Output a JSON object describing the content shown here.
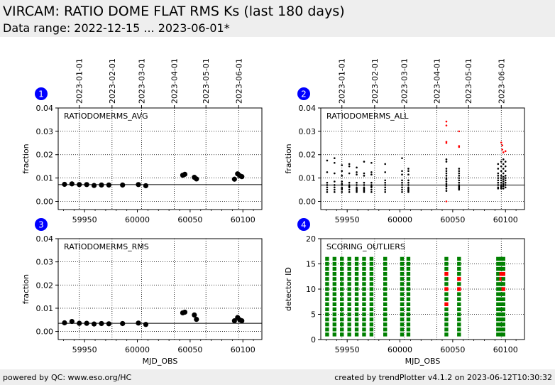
{
  "header": {
    "title": "VIRCAM: RATIO DOME FLAT RMS Ks (last 180 days)",
    "subtitle": "Data range: 2022-12-15 ... 2023-06-01*"
  },
  "footer": {
    "left": "powered by QC: www.eso.org/HC",
    "right": "created by trendPlotter v4.1.2 on 2023-06-12T10:30:32"
  },
  "colors": {
    "badge": "#0000ff",
    "outlier": "#ff0000",
    "good": "#008000",
    "points": "#000000",
    "header_bg": "#eeeeee"
  },
  "chart_data": [
    {
      "id": "1",
      "type": "scatter",
      "title": "RATIODOMERMS_AVG",
      "xlabel": "",
      "ylabel": "fraction",
      "xlim": [
        59925,
        60118
      ],
      "ylim": [
        -0.0035,
        0.04
      ],
      "xticks": [
        59950,
        60000,
        60050,
        60100
      ],
      "yticks": [
        0.0,
        0.01,
        0.02,
        0.03,
        0.04
      ],
      "ytick_labels": [
        "0.00",
        "0.01",
        "0.02",
        "0.03",
        "0.04"
      ],
      "date_ticks": [
        {
          "mjd": 59945,
          "label": "2023-01-01"
        },
        {
          "mjd": 59976,
          "label": "2023-02-01"
        },
        {
          "mjd": 60004,
          "label": "2023-03-01"
        },
        {
          "mjd": 60035,
          "label": "2023-04-01"
        },
        {
          "mjd": 60065,
          "label": "2023-05-01"
        },
        {
          "mjd": 60096,
          "label": "2023-06-01"
        }
      ],
      "reference_line": 0.0072,
      "marker": "large",
      "series": [
        {
          "color": "#000000",
          "points": [
            [
              59931,
              0.0073
            ],
            [
              59938,
              0.0075
            ],
            [
              59945,
              0.0072
            ],
            [
              59952,
              0.0072
            ],
            [
              59959,
              0.0068
            ],
            [
              59966,
              0.007
            ],
            [
              59973,
              0.007
            ],
            [
              59986,
              0.007
            ],
            [
              60001,
              0.0072
            ],
            [
              60008,
              0.0067
            ],
            [
              60043,
              0.0112
            ],
            [
              60045,
              0.0116
            ],
            [
              60054,
              0.0103
            ],
            [
              60056,
              0.0096
            ],
            [
              60092,
              0.0095
            ],
            [
              60095,
              0.0118
            ],
            [
              60097,
              0.011
            ],
            [
              60099,
              0.0106
            ]
          ]
        }
      ]
    },
    {
      "id": "2",
      "type": "scatter",
      "title": "RATIODOMERMS_ALL",
      "xlabel": "",
      "ylabel": "fraction",
      "xlim": [
        59925,
        60118
      ],
      "ylim": [
        -0.0035,
        0.04
      ],
      "xticks": [
        59950,
        60000,
        60050,
        60100
      ],
      "yticks": [
        0.0,
        0.01,
        0.02,
        0.03,
        0.04
      ],
      "ytick_labels": [
        "0.00",
        "0.01",
        "0.02",
        "0.03",
        "0.04"
      ],
      "date_ticks": [
        {
          "mjd": 59945,
          "label": "2023-01-01"
        },
        {
          "mjd": 59976,
          "label": "2023-02-01"
        },
        {
          "mjd": 60004,
          "label": "2023-03-01"
        },
        {
          "mjd": 60035,
          "label": "2023-04-01"
        },
        {
          "mjd": 60065,
          "label": "2023-05-01"
        },
        {
          "mjd": 60096,
          "label": "2023-06-01"
        }
      ],
      "reference_line": 0.007,
      "marker": "small",
      "series": [
        {
          "color": "#000000",
          "points": [
            [
              59931,
              0.004
            ],
            [
              59931,
              0.005
            ],
            [
              59931,
              0.006
            ],
            [
              59931,
              0.007
            ],
            [
              59931,
              0.008
            ],
            [
              59931,
              0.0125
            ],
            [
              59931,
              0.0175
            ],
            [
              59938,
              0.004
            ],
            [
              59938,
              0.005
            ],
            [
              59938,
              0.006
            ],
            [
              59938,
              0.007
            ],
            [
              59938,
              0.0085
            ],
            [
              59938,
              0.012
            ],
            [
              59938,
              0.0165
            ],
            [
              59938,
              0.0185
            ],
            [
              59945,
              0.004
            ],
            [
              59945,
              0.005
            ],
            [
              59945,
              0.0055
            ],
            [
              59945,
              0.006
            ],
            [
              59945,
              0.007
            ],
            [
              59945,
              0.0075
            ],
            [
              59945,
              0.0085
            ],
            [
              59945,
              0.011
            ],
            [
              59945,
              0.013
            ],
            [
              59945,
              0.0155
            ],
            [
              59952,
              0.004
            ],
            [
              59952,
              0.005
            ],
            [
              59952,
              0.006
            ],
            [
              59952,
              0.0065
            ],
            [
              59952,
              0.007
            ],
            [
              59952,
              0.008
            ],
            [
              59952,
              0.012
            ],
            [
              59952,
              0.015
            ],
            [
              59952,
              0.016
            ],
            [
              59959,
              0.004
            ],
            [
              59959,
              0.0045
            ],
            [
              59959,
              0.005
            ],
            [
              59959,
              0.0055
            ],
            [
              59959,
              0.006
            ],
            [
              59959,
              0.007
            ],
            [
              59959,
              0.008
            ],
            [
              59959,
              0.0115
            ],
            [
              59959,
              0.0125
            ],
            [
              59959,
              0.0145
            ],
            [
              59966,
              0.004
            ],
            [
              59966,
              0.0045
            ],
            [
              59966,
              0.005
            ],
            [
              59966,
              0.0055
            ],
            [
              59966,
              0.006
            ],
            [
              59966,
              0.007
            ],
            [
              59966,
              0.008
            ],
            [
              59966,
              0.011
            ],
            [
              59966,
              0.012
            ],
            [
              59966,
              0.017
            ],
            [
              59973,
              0.004
            ],
            [
              59973,
              0.005
            ],
            [
              59973,
              0.006
            ],
            [
              59973,
              0.0065
            ],
            [
              59973,
              0.007
            ],
            [
              59973,
              0.008
            ],
            [
              59973,
              0.0115
            ],
            [
              59973,
              0.0125
            ],
            [
              59973,
              0.0165
            ],
            [
              59986,
              0.004
            ],
            [
              59986,
              0.005
            ],
            [
              59986,
              0.006
            ],
            [
              59986,
              0.007
            ],
            [
              59986,
              0.008
            ],
            [
              59986,
              0.009
            ],
            [
              59986,
              0.0125
            ],
            [
              59986,
              0.016
            ],
            [
              60002,
              0.004
            ],
            [
              60002,
              0.005
            ],
            [
              60002,
              0.006
            ],
            [
              60002,
              0.007
            ],
            [
              60002,
              0.008
            ],
            [
              60002,
              0.009
            ],
            [
              60002,
              0.0115
            ],
            [
              60002,
              0.013
            ],
            [
              60002,
              0.0185
            ],
            [
              60008,
              0.004
            ],
            [
              60008,
              0.0045
            ],
            [
              60008,
              0.005
            ],
            [
              60008,
              0.0055
            ],
            [
              60008,
              0.006
            ],
            [
              60008,
              0.007
            ],
            [
              60008,
              0.008
            ],
            [
              60008,
              0.009
            ],
            [
              60008,
              0.0115
            ],
            [
              60008,
              0.013
            ],
            [
              60008,
              0.014
            ],
            [
              60044,
              0.0045
            ],
            [
              60044,
              0.0055
            ],
            [
              60044,
              0.0065
            ],
            [
              60044,
              0.0075
            ],
            [
              60044,
              0.0085
            ],
            [
              60044,
              0.0095
            ],
            [
              60044,
              0.01
            ],
            [
              60044,
              0.011
            ],
            [
              60044,
              0.012
            ],
            [
              60044,
              0.013
            ],
            [
              60044,
              0.014
            ],
            [
              60044,
              0.017
            ],
            [
              60044,
              0.018
            ],
            [
              60056,
              0.005
            ],
            [
              60056,
              0.0055
            ],
            [
              60056,
              0.006
            ],
            [
              60056,
              0.0065
            ],
            [
              60056,
              0.007
            ],
            [
              60056,
              0.008
            ],
            [
              60056,
              0.009
            ],
            [
              60056,
              0.01
            ],
            [
              60056,
              0.011
            ],
            [
              60056,
              0.012
            ],
            [
              60056,
              0.013
            ],
            [
              60056,
              0.014
            ],
            [
              60093,
              0.0055
            ],
            [
              60093,
              0.006
            ],
            [
              60093,
              0.007
            ],
            [
              60093,
              0.008
            ],
            [
              60093,
              0.009
            ],
            [
              60093,
              0.01
            ],
            [
              60093,
              0.011
            ],
            [
              60093,
              0.012
            ],
            [
              60093,
              0.014
            ],
            [
              60093,
              0.016
            ],
            [
              60096,
              0.0055
            ],
            [
              60096,
              0.006
            ],
            [
              60096,
              0.0065
            ],
            [
              60096,
              0.007
            ],
            [
              60096,
              0.008
            ],
            [
              60096,
              0.009
            ],
            [
              60096,
              0.01
            ],
            [
              60096,
              0.011
            ],
            [
              60096,
              0.013
            ],
            [
              60096,
              0.015
            ],
            [
              60096,
              0.017
            ],
            [
              60098,
              0.0055
            ],
            [
              60098,
              0.0065
            ],
            [
              60098,
              0.0075
            ],
            [
              60098,
              0.0085
            ],
            [
              60098,
              0.0095
            ],
            [
              60098,
              0.0105
            ],
            [
              60098,
              0.012
            ],
            [
              60098,
              0.014
            ],
            [
              60098,
              0.016
            ],
            [
              60098,
              0.018
            ],
            [
              60100,
              0.006
            ],
            [
              60100,
              0.007
            ],
            [
              60100,
              0.008
            ],
            [
              60100,
              0.009
            ],
            [
              60100,
              0.01
            ],
            [
              60100,
              0.011
            ],
            [
              60100,
              0.013
            ],
            [
              60100,
              0.015
            ],
            [
              60100,
              0.017
            ]
          ]
        },
        {
          "color": "#ff0000",
          "points": [
            [
              60044,
              0.0342
            ],
            [
              60044,
              0.0325
            ],
            [
              60044,
              0.0255
            ],
            [
              60044,
              0.025
            ],
            [
              60044,
              0.0
            ],
            [
              60056,
              0.03
            ],
            [
              60056,
              0.0237
            ],
            [
              60056,
              0.0233
            ],
            [
              60096,
              0.0252
            ],
            [
              60097,
              0.024
            ],
            [
              60097,
              0.0222
            ],
            [
              60098,
              0.021
            ],
            [
              60100,
              0.0215
            ]
          ]
        }
      ]
    },
    {
      "id": "3",
      "type": "scatter",
      "title": "RATIODOMERMS_RMS",
      "xlabel": "MJD_OBS",
      "ylabel": "fraction",
      "xlim": [
        59925,
        60118
      ],
      "ylim": [
        -0.0035,
        0.04
      ],
      "xticks": [
        59950,
        60000,
        60050,
        60100
      ],
      "yticks": [
        0.0,
        0.01,
        0.02,
        0.03,
        0.04
      ],
      "ytick_labels": [
        "0.00",
        "0.01",
        "0.02",
        "0.03",
        "0.04"
      ],
      "date_ticks": [],
      "reference_line": 0.0035,
      "marker": "large",
      "series": [
        {
          "color": "#000000",
          "points": [
            [
              59931,
              0.0037
            ],
            [
              59938,
              0.0043
            ],
            [
              59945,
              0.0035
            ],
            [
              59952,
              0.0035
            ],
            [
              59959,
              0.0032
            ],
            [
              59966,
              0.0034
            ],
            [
              59973,
              0.0033
            ],
            [
              59986,
              0.0034
            ],
            [
              60001,
              0.0036
            ],
            [
              60008,
              0.003
            ],
            [
              60043,
              0.008
            ],
            [
              60045,
              0.0083
            ],
            [
              60054,
              0.0071
            ],
            [
              60056,
              0.0052
            ],
            [
              60092,
              0.0046
            ],
            [
              60095,
              0.006
            ],
            [
              60097,
              0.005
            ],
            [
              60099,
              0.0046
            ]
          ]
        }
      ]
    },
    {
      "id": "4",
      "type": "scatter",
      "title": "SCORING_OUTLIERS",
      "xlabel": "MJD_OBS",
      "ylabel": "detector ID",
      "xlim": [
        59925,
        60118
      ],
      "ylim": [
        0,
        20
      ],
      "xticks": [
        59950,
        60000,
        60050,
        60100
      ],
      "yticks": [
        0,
        5,
        10,
        15,
        20
      ],
      "ytick_labels": [
        "0",
        "5",
        "10",
        "15",
        "20"
      ],
      "date_ticks": [],
      "reference_line": null,
      "marker": "square",
      "columns_mjd": [
        59931,
        59938,
        59945,
        59952,
        59959,
        59966,
        59973,
        59986,
        60002,
        60008,
        60044,
        60056,
        60093,
        60096,
        60098
      ],
      "detectors": 16,
      "outliers": [
        [
          60044,
          7
        ],
        [
          60044,
          10
        ],
        [
          60044,
          13
        ],
        [
          60056,
          10
        ],
        [
          60056,
          12
        ],
        [
          60096,
          13
        ],
        [
          60096,
          12
        ],
        [
          60098,
          13
        ],
        [
          60098,
          10
        ]
      ]
    }
  ]
}
